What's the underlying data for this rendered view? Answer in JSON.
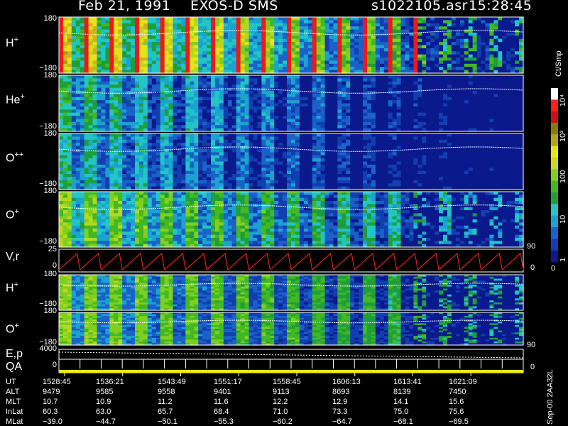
{
  "header": {
    "date": "Feb 21, 1991",
    "mission": "EXOS-D SMS",
    "file": "s1022105.asr",
    "time": "15:28:45"
  },
  "colorbar": {
    "unit": "Ct/Smp",
    "ticks": [
      "10⁴",
      "10³",
      "100",
      "10",
      "1"
    ],
    "zero": "0"
  },
  "panels": [
    {
      "id": "hplus",
      "label_base": "H",
      "label_sup": "+",
      "ymax": "180",
      "ymin": "−180"
    },
    {
      "id": "heplus",
      "label_base": "He",
      "label_sup": "+",
      "ymax": "180",
      "ymin": "−180"
    },
    {
      "id": "oplusplus",
      "label_base": "O",
      "label_sup": "++",
      "ymax": "180",
      "ymin": "−180"
    },
    {
      "id": "oplus",
      "label_base": "O",
      "label_sup": "+",
      "ymax": "180",
      "ymin": "−180",
      "right_tick": "90"
    },
    {
      "id": "vr",
      "label_base": "V,r",
      "label_sup": "",
      "ymax": "25",
      "ymin": "0",
      "right_tick": "0"
    },
    {
      "id": "hplus2",
      "label_base": "H",
      "label_sup": "+",
      "ymax": "180",
      "ymin": "−180"
    },
    {
      "id": "oplus2",
      "label_base": "O",
      "label_sup": "+",
      "ymax": "180",
      "ymin": "−180",
      "right_tick": "90"
    },
    {
      "id": "ep",
      "label_base": "E,p",
      "label_sup": "",
      "label2": "QA",
      "ymax": "4000",
      "ymin": "0",
      "right_tick": "0"
    }
  ],
  "ephemeris": {
    "labels": [
      "UT",
      "ALT",
      "MLT",
      "InLat",
      "MLat"
    ],
    "columns": [
      {
        "UT": "1528:45",
        "ALT": "9479",
        "MLT": "10.7",
        "InLat": "60.3",
        "MLat": "−39.0"
      },
      {
        "UT": "1536:21",
        "ALT": "9585",
        "MLT": "10.9",
        "InLat": "63.0",
        "MLat": "−44.7"
      },
      {
        "UT": "1543:49",
        "ALT": "9558",
        "MLT": "11.2",
        "InLat": "65.7",
        "MLat": "−50.1"
      },
      {
        "UT": "1551:17",
        "ALT": "9401",
        "MLT": "11.6",
        "InLat": "68.4",
        "MLat": "−55.3"
      },
      {
        "UT": "1558:45",
        "ALT": "9113",
        "MLT": "12.2",
        "InLat": "71.0",
        "MLat": "−60.2"
      },
      {
        "UT": "1606:13",
        "ALT": "8693",
        "MLT": "12.9",
        "InLat": "73.3",
        "MLat": "−64.7"
      },
      {
        "UT": "1613:41",
        "ALT": "8139",
        "MLT": "14.1",
        "InLat": "75.0",
        "MLat": "−68.1"
      },
      {
        "UT": "1621:09",
        "ALT": "7450",
        "MLT": "15.6",
        "InLat": "75.6",
        "MLat": "−69.5"
      }
    ]
  },
  "sidenote": "Sep-00 2AA32L",
  "chart_data": {
    "type": "heatmap",
    "title": "Feb 21, 1991   EXOS-D SMS",
    "x_ticks": [
      "1528:45",
      "1536:21",
      "1543:49",
      "1551:17",
      "1558:45",
      "1606:13",
      "1613:41",
      "1621:09"
    ],
    "color_scale": "log",
    "color_range": [
      1,
      10000
    ],
    "series": [
      {
        "name": "H+",
        "ylim": [
          -180,
          180
        ]
      },
      {
        "name": "He+",
        "ylim": [
          -180,
          180
        ]
      },
      {
        "name": "O++",
        "ylim": [
          -180,
          180
        ]
      },
      {
        "name": "O+",
        "ylim": [
          -180,
          180
        ]
      },
      {
        "name": "V,r",
        "ylim": [
          0,
          25
        ]
      },
      {
        "name": "H+",
        "ylim": [
          -180,
          180
        ]
      },
      {
        "name": "O+",
        "ylim": [
          -180,
          180
        ]
      },
      {
        "name": "E,p",
        "ylim": [
          0,
          4000
        ]
      }
    ]
  }
}
